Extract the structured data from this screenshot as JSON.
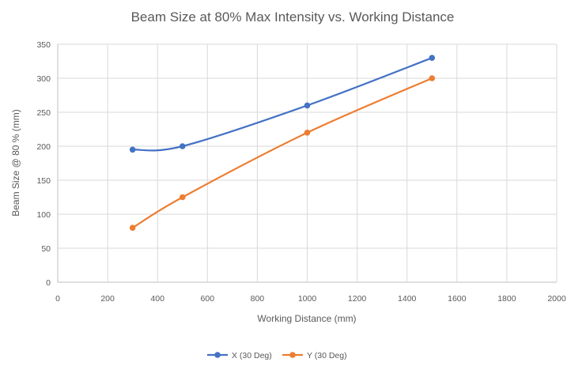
{
  "chart_data": {
    "type": "line",
    "title": "Beam Size at 80% Max Intensity vs. Working Distance",
    "xlabel": "Working Distance (mm)",
    "ylabel": "Beam Size @ 80 % (mm)",
    "xlim": [
      0,
      2000
    ],
    "ylim": [
      0,
      350
    ],
    "xticks": [
      0,
      200,
      400,
      600,
      800,
      1000,
      1200,
      1400,
      1600,
      1800,
      2000
    ],
    "yticks": [
      0,
      50,
      100,
      150,
      200,
      250,
      300,
      350
    ],
    "grid": true,
    "legend_position": "bottom",
    "series": [
      {
        "name": "X (30 Deg)",
        "color": "#4472c4",
        "x": [
          300,
          500,
          1000,
          1500
        ],
        "y": [
          195,
          200,
          260,
          330
        ]
      },
      {
        "name": "Y (30 Deg)",
        "color": "#ed7d31",
        "x": [
          300,
          500,
          1000,
          1500
        ],
        "y": [
          80,
          125,
          220,
          300
        ]
      }
    ]
  }
}
